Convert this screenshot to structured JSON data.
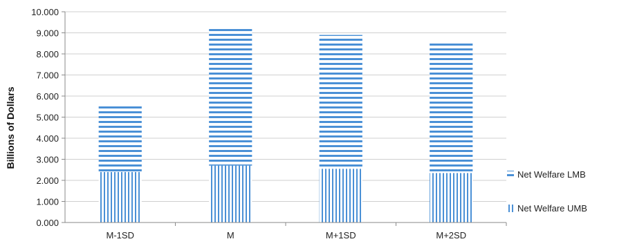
{
  "chart_data": {
    "type": "bar",
    "stacked": true,
    "title": "",
    "xlabel": "",
    "ylabel": "Billions of Dollars",
    "ylim": [
      0,
      10
    ],
    "y_ticks": [
      "0.000",
      "1.000",
      "2.000",
      "3.000",
      "4.000",
      "5.000",
      "6.000",
      "7.000",
      "8.000",
      "9.000",
      "10.000"
    ],
    "categories": [
      "M-1SD",
      "M",
      "M+1SD",
      "M+2SD"
    ],
    "series": [
      {
        "name": "Net Welfare UMB",
        "values": [
          2.4,
          2.7,
          2.55,
          2.35
        ],
        "color": "#4a90d6",
        "pattern": "vertical-stripes"
      },
      {
        "name": "Net Welfare LMB",
        "values": [
          3.15,
          6.6,
          6.35,
          6.2
        ],
        "color": "#4a90d6",
        "pattern": "horizontal-stripes"
      }
    ],
    "grid": true,
    "legend": "right"
  }
}
